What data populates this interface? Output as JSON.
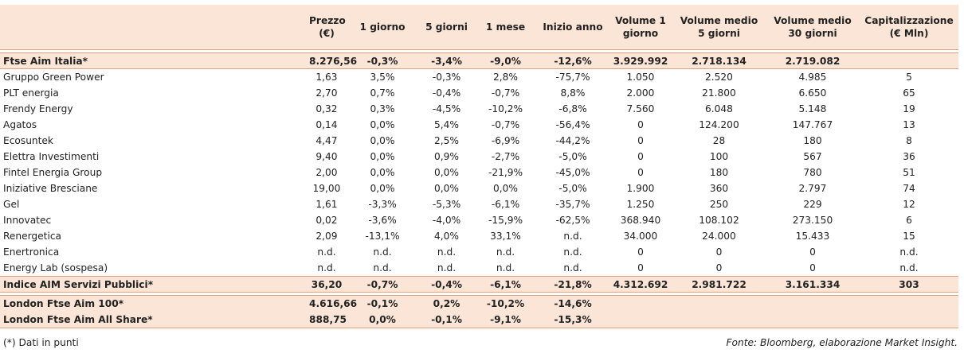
{
  "headers": [
    "",
    "Prezzo\n(€)",
    "1 giorno",
    "5 giorni",
    "1 mese",
    "Inizio anno",
    "Volume 1\ngiorno",
    "Volume medio\n5 giorni",
    "Volume medio\n30 giorni",
    "Capitalizzazione\n(€ Mln)"
  ],
  "index_row": [
    "Ftse Aim Italia*",
    "8.276,56",
    "-0,3%",
    "-3,4%",
    "-9,0%",
    "-12,6%",
    "3.929.992",
    "2.718.134",
    "2.719.082",
    ""
  ],
  "rows": [
    [
      "Gruppo Green Power",
      "1,63",
      "3,5%",
      "-0,3%",
      "2,8%",
      "-75,7%",
      "1.050",
      "2.520",
      "4.985",
      "5"
    ],
    [
      "PLT energia",
      "2,70",
      "0,7%",
      "-0,4%",
      "-0,7%",
      "8,8%",
      "2.000",
      "21.800",
      "6.650",
      "65"
    ],
    [
      "Frendy Energy",
      "0,32",
      "0,3%",
      "-4,5%",
      "-10,2%",
      "-6,8%",
      "7.560",
      "6.048",
      "5.148",
      "19"
    ],
    [
      "Agatos",
      "0,14",
      "0,0%",
      "5,4%",
      "-0,7%",
      "-56,4%",
      "0",
      "124.200",
      "147.767",
      "13"
    ],
    [
      "Ecosuntek",
      "4,47",
      "0,0%",
      "2,5%",
      "-6,9%",
      "-44,2%",
      "0",
      "28",
      "180",
      "8"
    ],
    [
      "Elettra Investimenti",
      "9,40",
      "0,0%",
      "0,9%",
      "-2,7%",
      "-5,0%",
      "0",
      "100",
      "567",
      "36"
    ],
    [
      "Fintel Energia Group",
      "2,00",
      "0,0%",
      "0,0%",
      "-21,9%",
      "-45,0%",
      "0",
      "180",
      "780",
      "51"
    ],
    [
      "Iniziative Bresciane",
      "19,00",
      "0,0%",
      "0,0%",
      "0,0%",
      "-5,0%",
      "1.900",
      "360",
      "2.797",
      "74"
    ],
    [
      "Gel",
      "1,61",
      "-3,3%",
      "-5,3%",
      "-6,1%",
      "-35,7%",
      "1.250",
      "250",
      "229",
      "12"
    ],
    [
      "Innovatec",
      "0,02",
      "-3,6%",
      "-4,0%",
      "-15,9%",
      "-62,5%",
      "368.940",
      "108.102",
      "273.150",
      "6"
    ],
    [
      "Renergetica",
      "2,09",
      "-13,1%",
      "4,0%",
      "33,1%",
      "n.d.",
      "34.000",
      "24.000",
      "15.433",
      "15"
    ],
    [
      "Enertronica",
      "n.d.",
      "n.d.",
      "n.d.",
      "n.d.",
      "n.d.",
      "0",
      "0",
      "0",
      "n.d."
    ],
    [
      "Energy Lab (sospesa)",
      "n.d.",
      "n.d.",
      "n.d.",
      "n.d.",
      "n.d.",
      "0",
      "0",
      "0",
      "n.d."
    ]
  ],
  "summary_row": [
    "Indice AIM Servizi Pubblici*",
    "36,20",
    "-0,7%",
    "-0,4%",
    "-6,1%",
    "-21,8%",
    "4.312.692",
    "2.981.722",
    "3.161.334",
    "303"
  ],
  "london_rows": [
    [
      "London Ftse Aim 100*",
      "4.616,66",
      "-0,1%",
      "0,2%",
      "-10,2%",
      "-14,6%",
      "",
      "",
      "",
      ""
    ],
    [
      "London Ftse Aim All Share*",
      "888,75",
      "0,0%",
      "-0,1%",
      "-9,1%",
      "-15,3%",
      "",
      "",
      "",
      ""
    ]
  ],
  "footnote": "(*) Dati in punti",
  "source": "Fonte: Bloomberg, elaborazione Market Insight."
}
